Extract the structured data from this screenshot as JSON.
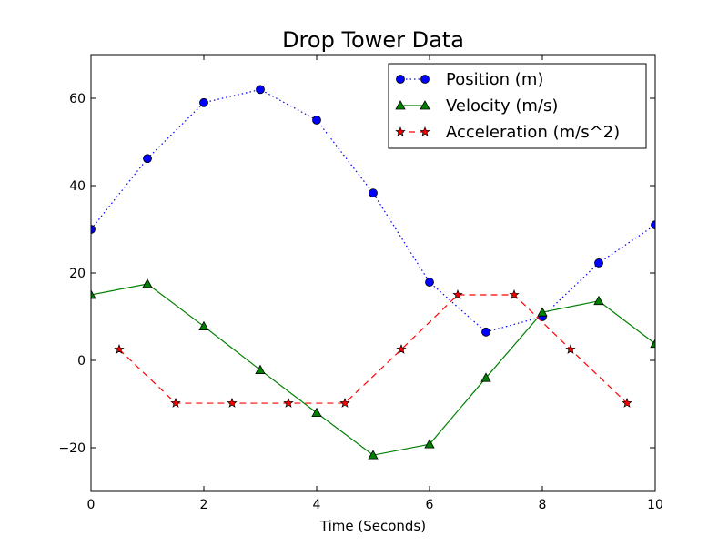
{
  "chart_data": {
    "type": "line",
    "title": "Drop Tower Data",
    "xlabel": "Time (Seconds)",
    "ylabel": "",
    "xlim": [
      0,
      10
    ],
    "ylim": [
      -30,
      70
    ],
    "xticks": [
      0,
      2,
      4,
      6,
      8,
      10
    ],
    "yticks": [
      -20,
      0,
      20,
      40,
      60
    ],
    "xtick_labels": [
      "0",
      "2",
      "4",
      "6",
      "8",
      "10"
    ],
    "ytick_labels": [
      "−20",
      "0",
      "20",
      "40",
      "60"
    ],
    "grid": false,
    "legend_position": "top-right",
    "series": [
      {
        "name": "Position (m)",
        "color": "#0000ff",
        "line_style": "dotted",
        "marker": "circle",
        "x": [
          0,
          1,
          2,
          3,
          4,
          5,
          6,
          7,
          8,
          9,
          10
        ],
        "y": [
          30,
          46.2,
          59,
          62,
          55,
          38.3,
          17.9,
          6.5,
          10,
          22.3,
          31
        ]
      },
      {
        "name": "Velocity (m/s)",
        "color": "#008000",
        "line_style": "solid",
        "marker": "triangle",
        "x": [
          0,
          1,
          2,
          3,
          4,
          5,
          6,
          7,
          8,
          9,
          10
        ],
        "y": [
          15,
          17.5,
          7.8,
          -2.2,
          -12,
          -21.7,
          -19.2,
          -4,
          11,
          13.6,
          3.8
        ]
      },
      {
        "name": "Acceleration (m/s^2)",
        "color": "#ff0000",
        "line_style": "dashed",
        "marker": "star",
        "x": [
          0.5,
          1.5,
          2.5,
          3.5,
          4.5,
          5.5,
          6.5,
          7.5,
          8.5,
          9.5
        ],
        "y": [
          2.5,
          -9.8,
          -9.8,
          -9.8,
          -9.8,
          2.5,
          15,
          15,
          2.5,
          -9.8
        ]
      }
    ]
  }
}
